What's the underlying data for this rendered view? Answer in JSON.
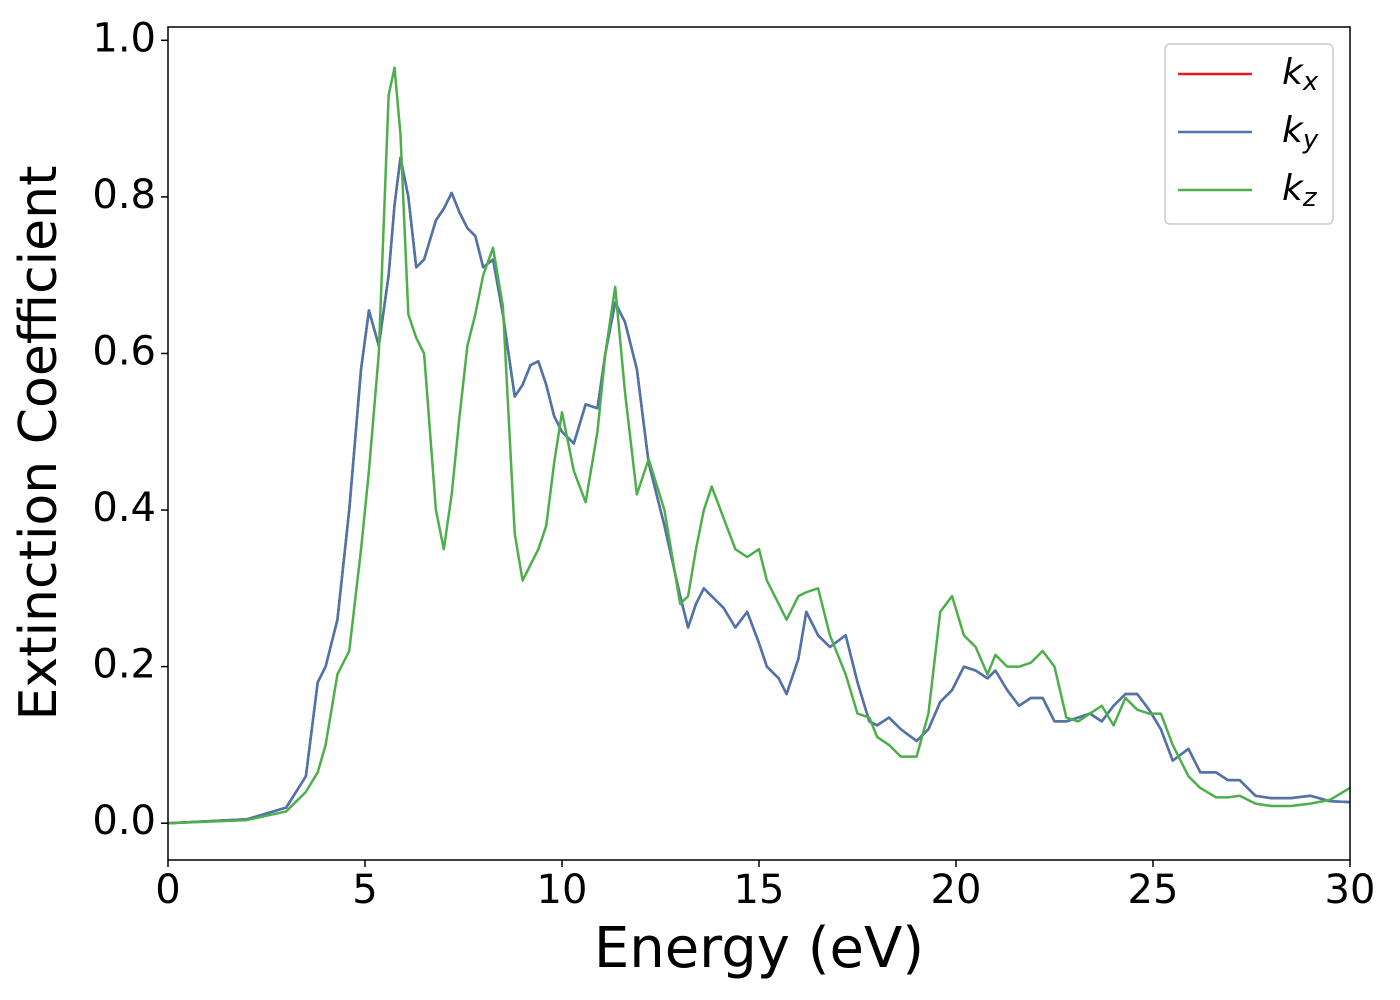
{
  "chart_data": {
    "type": "line",
    "xlabel": "Energy (eV)",
    "ylabel": "Extinction Coefficient",
    "x": [
      0,
      2,
      3,
      3.5,
      3.8,
      4.0,
      4.3,
      4.6,
      4.9,
      5.1,
      5.35,
      5.6,
      5.75,
      5.9,
      6.1,
      6.3,
      6.5,
      6.8,
      7.0,
      7.2,
      7.4,
      7.6,
      7.8,
      8.0,
      8.25,
      8.5,
      8.8,
      9.0,
      9.2,
      9.4,
      9.6,
      9.8,
      10.0,
      10.3,
      10.6,
      10.9,
      11.1,
      11.35,
      11.6,
      11.9,
      12.2,
      12.6,
      13.0,
      13.2,
      13.4,
      13.6,
      13.8,
      14.1,
      14.4,
      14.7,
      15.0,
      15.2,
      15.5,
      15.7,
      16.0,
      16.2,
      16.5,
      16.8,
      17.2,
      17.5,
      17.8,
      18.0,
      18.3,
      18.6,
      19.0,
      19.3,
      19.6,
      19.9,
      20.2,
      20.5,
      20.8,
      21.0,
      21.3,
      21.6,
      21.9,
      22.2,
      22.5,
      22.8,
      23.1,
      23.4,
      23.7,
      24.0,
      24.3,
      24.6,
      24.9,
      25.2,
      25.5,
      25.9,
      26.2,
      26.6,
      26.9,
      27.2,
      27.6,
      28,
      28.5,
      29,
      29.5,
      30
    ],
    "series": [
      {
        "name": "kx",
        "color": "#e41a1c",
        "values": [
          0,
          0.005,
          0.02,
          0.06,
          0.18,
          0.2,
          0.26,
          0.4,
          0.58,
          0.655,
          0.61,
          0.7,
          0.79,
          0.85,
          0.8,
          0.71,
          0.72,
          0.77,
          0.785,
          0.805,
          0.78,
          0.76,
          0.75,
          0.71,
          0.72,
          0.65,
          0.545,
          0.56,
          0.585,
          0.59,
          0.56,
          0.52,
          0.5,
          0.485,
          0.535,
          0.53,
          0.6,
          0.665,
          0.64,
          0.58,
          0.46,
          0.38,
          0.29,
          0.25,
          0.28,
          0.3,
          0.29,
          0.275,
          0.25,
          0.27,
          0.23,
          0.2,
          0.185,
          0.165,
          0.21,
          0.27,
          0.24,
          0.225,
          0.24,
          0.18,
          0.13,
          0.125,
          0.135,
          0.12,
          0.105,
          0.12,
          0.155,
          0.17,
          0.2,
          0.195,
          0.185,
          0.195,
          0.17,
          0.15,
          0.16,
          0.16,
          0.13,
          0.13,
          0.135,
          0.14,
          0.13,
          0.15,
          0.165,
          0.165,
          0.145,
          0.12,
          0.08,
          0.095,
          0.065,
          0.065,
          0.055,
          0.055,
          0.035,
          0.032,
          0.032,
          0.035,
          0.028,
          0.027
        ]
      },
      {
        "name": "ky",
        "color": "#4a76ad",
        "values": [
          0,
          0.005,
          0.02,
          0.06,
          0.18,
          0.2,
          0.26,
          0.4,
          0.58,
          0.655,
          0.61,
          0.7,
          0.79,
          0.85,
          0.8,
          0.71,
          0.72,
          0.77,
          0.785,
          0.805,
          0.78,
          0.76,
          0.75,
          0.71,
          0.72,
          0.65,
          0.545,
          0.56,
          0.585,
          0.59,
          0.56,
          0.52,
          0.5,
          0.485,
          0.535,
          0.53,
          0.6,
          0.665,
          0.64,
          0.58,
          0.46,
          0.38,
          0.29,
          0.25,
          0.28,
          0.3,
          0.29,
          0.275,
          0.25,
          0.27,
          0.23,
          0.2,
          0.185,
          0.165,
          0.21,
          0.27,
          0.24,
          0.225,
          0.24,
          0.18,
          0.13,
          0.125,
          0.135,
          0.12,
          0.105,
          0.12,
          0.155,
          0.17,
          0.2,
          0.195,
          0.185,
          0.195,
          0.17,
          0.15,
          0.16,
          0.16,
          0.13,
          0.13,
          0.135,
          0.14,
          0.13,
          0.15,
          0.165,
          0.165,
          0.145,
          0.12,
          0.08,
          0.095,
          0.065,
          0.065,
          0.055,
          0.055,
          0.035,
          0.032,
          0.032,
          0.035,
          0.028,
          0.027
        ]
      },
      {
        "name": "kz",
        "color": "#4daf4a",
        "values": [
          0,
          0.004,
          0.015,
          0.04,
          0.065,
          0.1,
          0.19,
          0.22,
          0.35,
          0.45,
          0.6,
          0.93,
          0.965,
          0.88,
          0.65,
          0.62,
          0.6,
          0.4,
          0.35,
          0.42,
          0.52,
          0.61,
          0.65,
          0.7,
          0.735,
          0.66,
          0.37,
          0.31,
          0.33,
          0.35,
          0.38,
          0.46,
          0.525,
          0.45,
          0.41,
          0.5,
          0.6,
          0.685,
          0.55,
          0.42,
          0.465,
          0.4,
          0.28,
          0.29,
          0.35,
          0.4,
          0.43,
          0.39,
          0.35,
          0.34,
          0.35,
          0.31,
          0.28,
          0.26,
          0.29,
          0.295,
          0.3,
          0.24,
          0.19,
          0.14,
          0.135,
          0.11,
          0.1,
          0.085,
          0.085,
          0.14,
          0.27,
          0.29,
          0.24,
          0.225,
          0.19,
          0.215,
          0.2,
          0.2,
          0.205,
          0.22,
          0.2,
          0.135,
          0.13,
          0.14,
          0.15,
          0.125,
          0.16,
          0.145,
          0.14,
          0.14,
          0.1,
          0.06,
          0.045,
          0.033,
          0.033,
          0.035,
          0.025,
          0.022,
          0.022,
          0.025,
          0.03,
          0.045
        ]
      }
    ],
    "xlim": [
      0,
      30
    ],
    "xticks": [
      0,
      5,
      10,
      15,
      20,
      25,
      30
    ],
    "ylim": [
      -0.047,
      1.017
    ],
    "yticks": [
      {
        "value": 0,
        "label": "0.0"
      },
      0.2,
      0.4,
      0.6,
      0.8,
      {
        "value": 1,
        "label": "1.0"
      }
    ],
    "legend": "upper right",
    "grid": false
  }
}
